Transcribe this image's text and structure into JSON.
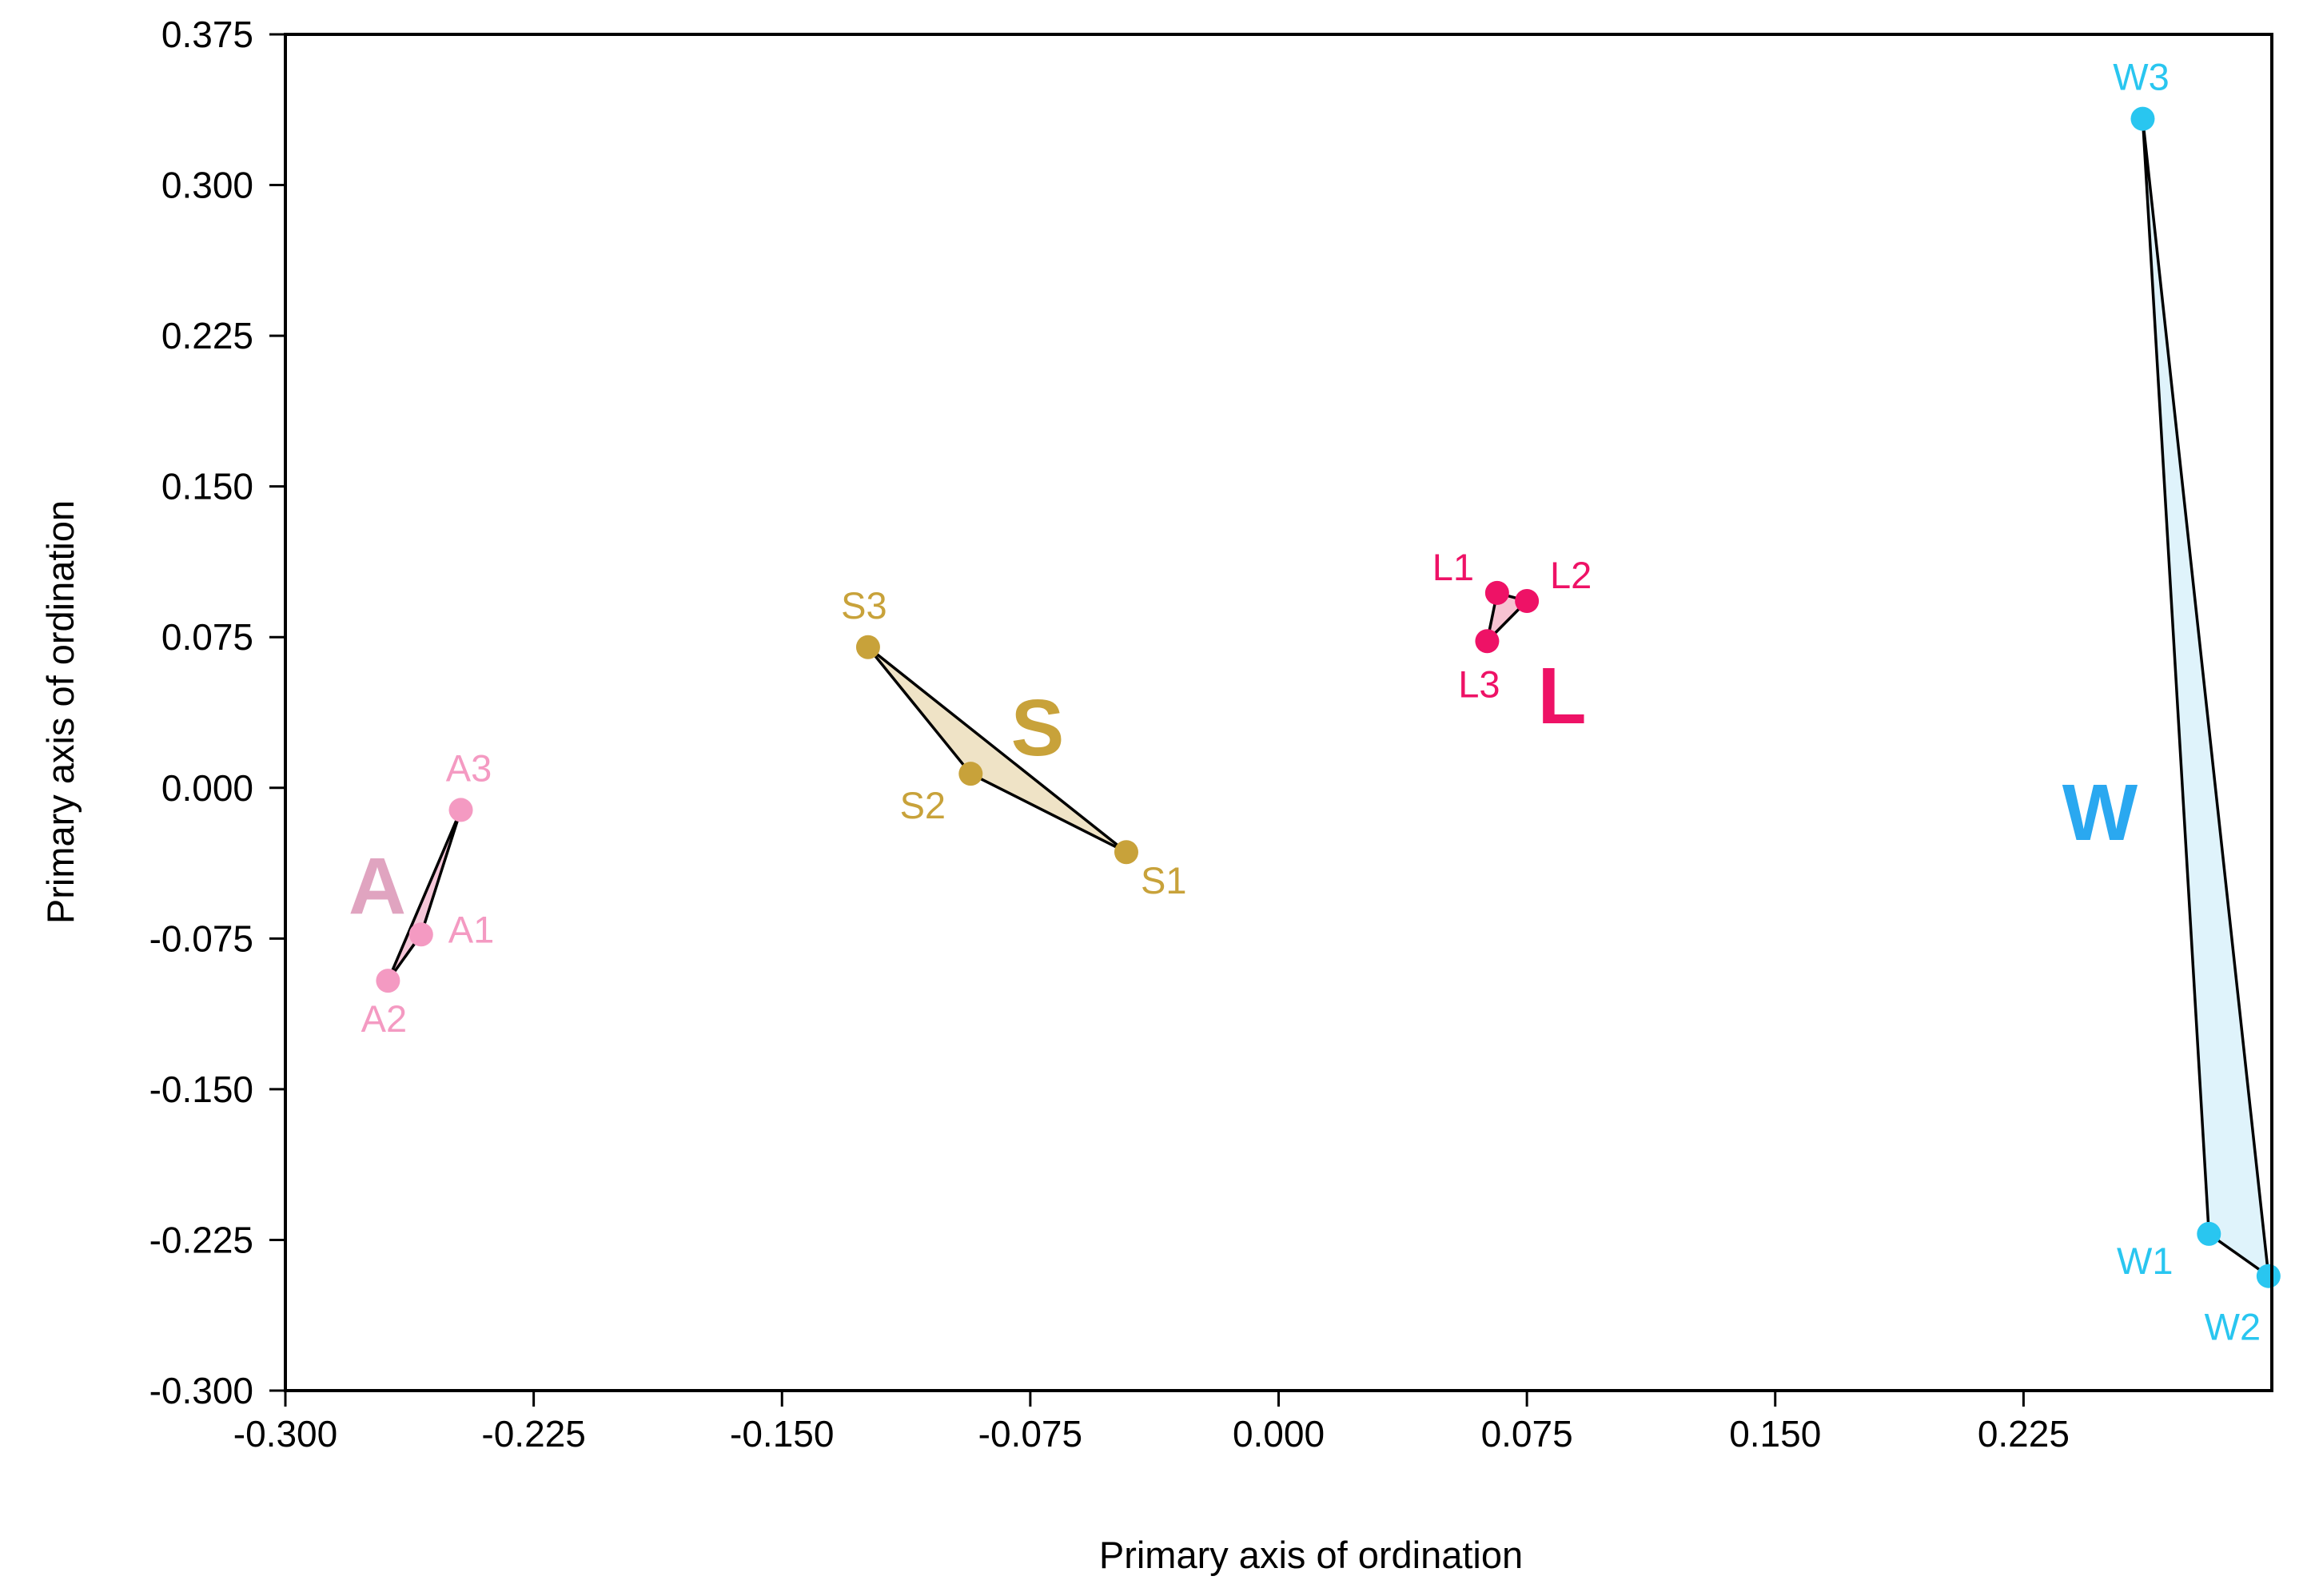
{
  "chart_data": {
    "type": "scatter",
    "title": "",
    "xlabel": "Primary axis of ordination",
    "ylabel": "Primary axis of ordination",
    "xlim": [
      -0.3,
      0.3
    ],
    "ylim": [
      -0.3,
      0.375
    ],
    "xticks": [
      "-0.300",
      "-0.225",
      "-0.150",
      "-0.075",
      "0.000",
      "0.075",
      "0.150",
      "0.225"
    ],
    "yticks": [
      "-0.300",
      "-0.225",
      "-0.150",
      "-0.075",
      "0.000",
      "0.075",
      "0.150",
      "0.225",
      "0.300",
      "0.375"
    ],
    "grid": false,
    "legend": "none",
    "groups": [
      {
        "name": "A",
        "color": "#f49ac2",
        "label_color": "#e0a4c0",
        "hull_fill": "#f5c6d8",
        "points": [
          {
            "label": "A1",
            "x": -0.259,
            "y": -0.073
          },
          {
            "label": "A2",
            "x": -0.269,
            "y": -0.096
          },
          {
            "label": "A3",
            "x": -0.247,
            "y": -0.011
          }
        ]
      },
      {
        "name": "S",
        "color": "#c8a23a",
        "label_color": "#c8a23a",
        "hull_fill": "#efe3c6",
        "points": [
          {
            "label": "S1",
            "x": -0.046,
            "y": -0.032
          },
          {
            "label": "S2",
            "x": -0.093,
            "y": 0.007
          },
          {
            "label": "S3",
            "x": -0.124,
            "y": 0.07
          }
        ]
      },
      {
        "name": "L",
        "color": "#ee1266",
        "label_color": "#ee1266",
        "hull_fill": "#f7c3d2",
        "points": [
          {
            "label": "L1",
            "x": 0.066,
            "y": 0.097
          },
          {
            "label": "L2",
            "x": 0.075,
            "y": 0.093
          },
          {
            "label": "L3",
            "x": 0.063,
            "y": 0.073
          }
        ]
      },
      {
        "name": "W",
        "color": "#29c6f0",
        "label_color": "#2aa8f0",
        "hull_fill": "#dff3fb",
        "points": [
          {
            "label": "W1",
            "x": 0.281,
            "y": -0.222
          },
          {
            "label": "W2",
            "x": 0.299,
            "y": -0.243
          },
          {
            "label": "W3",
            "x": 0.261,
            "y": 0.333
          }
        ]
      }
    ]
  }
}
